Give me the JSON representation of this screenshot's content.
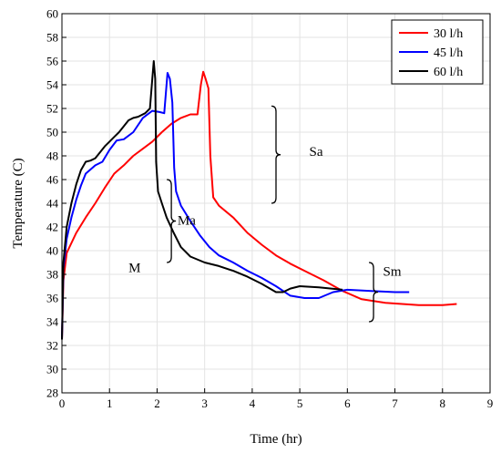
{
  "chart_data": {
    "type": "line",
    "title": "",
    "xlabel": "Time (hr)",
    "ylabel": "Temperature (C)",
    "xlim": [
      0,
      9
    ],
    "ylim": [
      28,
      60
    ],
    "xticks": [
      0,
      1,
      2,
      3,
      4,
      5,
      6,
      7,
      8,
      9
    ],
    "yticks": [
      28,
      30,
      32,
      34,
      36,
      38,
      40,
      42,
      44,
      46,
      48,
      50,
      52,
      54,
      56,
      58,
      60
    ],
    "grid": true,
    "legend_position": "top-right",
    "series": [
      {
        "name": "30 l/h",
        "color": "#ff0000",
        "points": [
          [
            0,
            32.5
          ],
          [
            0.03,
            37.5
          ],
          [
            0.1,
            39.8
          ],
          [
            0.3,
            41.5
          ],
          [
            0.5,
            42.8
          ],
          [
            0.7,
            44
          ],
          [
            0.9,
            45.3
          ],
          [
            1.1,
            46.5
          ],
          [
            1.3,
            47.2
          ],
          [
            1.5,
            48
          ],
          [
            1.7,
            48.6
          ],
          [
            1.9,
            49.2
          ],
          [
            2.1,
            50
          ],
          [
            2.3,
            50.7
          ],
          [
            2.5,
            51.2
          ],
          [
            2.7,
            51.5
          ],
          [
            2.85,
            51.5
          ],
          [
            2.92,
            54
          ],
          [
            2.97,
            55.1
          ],
          [
            3.02,
            54.5
          ],
          [
            3.08,
            53.7
          ],
          [
            3.12,
            48
          ],
          [
            3.18,
            44.5
          ],
          [
            3.3,
            43.8
          ],
          [
            3.6,
            42.8
          ],
          [
            3.9,
            41.5
          ],
          [
            4.2,
            40.5
          ],
          [
            4.5,
            39.6
          ],
          [
            4.8,
            38.9
          ],
          [
            5.1,
            38.3
          ],
          [
            5.5,
            37.5
          ],
          [
            5.9,
            36.6
          ],
          [
            6.3,
            35.9
          ],
          [
            6.8,
            35.6
          ],
          [
            7.5,
            35.4
          ],
          [
            8.0,
            35.4
          ],
          [
            8.3,
            35.5
          ]
        ]
      },
      {
        "name": "45 l/h",
        "color": "#0000ff",
        "points": [
          [
            0,
            32.5
          ],
          [
            0.03,
            38.5
          ],
          [
            0.1,
            41
          ],
          [
            0.2,
            42.8
          ],
          [
            0.3,
            44.3
          ],
          [
            0.4,
            45.5
          ],
          [
            0.5,
            46.5
          ],
          [
            0.7,
            47.2
          ],
          [
            0.85,
            47.5
          ],
          [
            1.0,
            48.5
          ],
          [
            1.15,
            49.3
          ],
          [
            1.3,
            49.4
          ],
          [
            1.5,
            50
          ],
          [
            1.7,
            51.2
          ],
          [
            1.9,
            51.8
          ],
          [
            2.05,
            51.7
          ],
          [
            2.15,
            51.6
          ],
          [
            2.22,
            55
          ],
          [
            2.27,
            54.5
          ],
          [
            2.32,
            52.5
          ],
          [
            2.36,
            47
          ],
          [
            2.4,
            45
          ],
          [
            2.5,
            43.8
          ],
          [
            2.7,
            42.5
          ],
          [
            2.9,
            41.3
          ],
          [
            3.1,
            40.3
          ],
          [
            3.3,
            39.6
          ],
          [
            3.6,
            39
          ],
          [
            3.9,
            38.3
          ],
          [
            4.2,
            37.7
          ],
          [
            4.5,
            37
          ],
          [
            4.8,
            36.2
          ],
          [
            5.1,
            36
          ],
          [
            5.4,
            36
          ],
          [
            5.7,
            36.5
          ],
          [
            6.0,
            36.7
          ],
          [
            6.5,
            36.6
          ],
          [
            7.0,
            36.5
          ],
          [
            7.3,
            36.5
          ]
        ]
      },
      {
        "name": "60 l/h",
        "color": "#000000",
        "points": [
          [
            0,
            32.5
          ],
          [
            0.03,
            39
          ],
          [
            0.1,
            42
          ],
          [
            0.2,
            44
          ],
          [
            0.3,
            45.6
          ],
          [
            0.4,
            46.8
          ],
          [
            0.5,
            47.5
          ],
          [
            0.6,
            47.6
          ],
          [
            0.7,
            47.8
          ],
          [
            0.8,
            48.3
          ],
          [
            0.9,
            48.8
          ],
          [
            1.0,
            49.2
          ],
          [
            1.1,
            49.6
          ],
          [
            1.2,
            50
          ],
          [
            1.3,
            50.5
          ],
          [
            1.4,
            51
          ],
          [
            1.5,
            51.2
          ],
          [
            1.6,
            51.3
          ],
          [
            1.75,
            51.6
          ],
          [
            1.85,
            52
          ],
          [
            1.9,
            54.5
          ],
          [
            1.93,
            56
          ],
          [
            1.96,
            54.5
          ],
          [
            1.98,
            47.5
          ],
          [
            2.02,
            45
          ],
          [
            2.1,
            44
          ],
          [
            2.2,
            42.8
          ],
          [
            2.35,
            41.5
          ],
          [
            2.5,
            40.3
          ],
          [
            2.7,
            39.5
          ],
          [
            3.0,
            39
          ],
          [
            3.3,
            38.7
          ],
          [
            3.6,
            38.3
          ],
          [
            3.9,
            37.8
          ],
          [
            4.2,
            37.2
          ],
          [
            4.5,
            36.5
          ],
          [
            4.65,
            36.5
          ],
          [
            4.8,
            36.8
          ],
          [
            5.0,
            37
          ],
          [
            5.4,
            36.9
          ],
          [
            5.9,
            36.7
          ]
        ]
      }
    ],
    "annotations": [
      {
        "text": "Sa",
        "bracket_x": 4.5,
        "y_range": [
          44,
          52.2
        ],
        "label_x": 5.2,
        "label_y": 48
      },
      {
        "text": "Ma",
        "bracket_x": 2.3,
        "y_range": [
          39,
          46
        ],
        "label_x": 2.43,
        "label_y": 42.2
      },
      {
        "text": "M",
        "bracket_x": 2.2,
        "y_range": [
          39,
          46
        ],
        "label_x": 1.4,
        "label_y": 38.2
      },
      {
        "text": "Sm",
        "bracket_x": 6.55,
        "y_range": [
          34,
          39
        ],
        "label_x": 6.75,
        "label_y": 37.9
      }
    ]
  }
}
